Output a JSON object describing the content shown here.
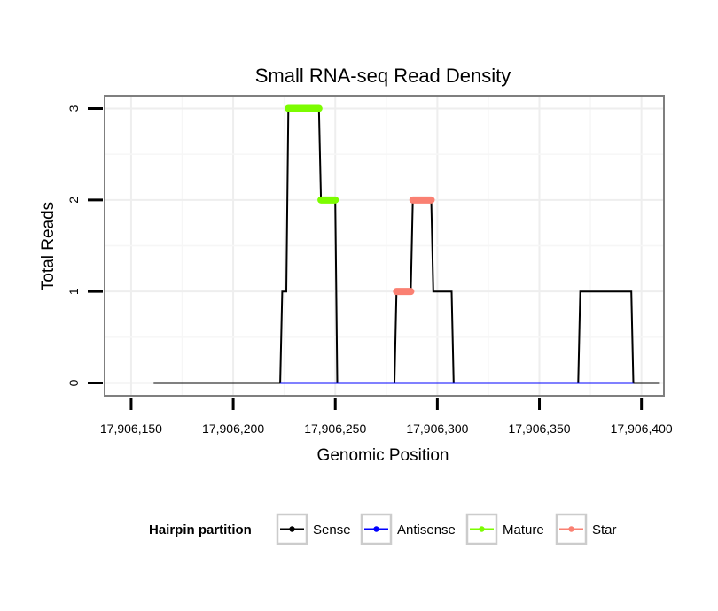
{
  "chart_data": {
    "type": "line",
    "title": "Small RNA-seq Read Density",
    "xlabel": "Genomic Position",
    "ylabel": "Total Reads",
    "xlim": [
      17906137,
      17906411
    ],
    "ylim": [
      -0.14,
      3.14
    ],
    "x_ticks": [
      {
        "value": 17906150,
        "label": "17,906,150"
      },
      {
        "value": 17906200,
        "label": "17,906,200"
      },
      {
        "value": 17906250,
        "label": "17,906,250"
      },
      {
        "value": 17906300,
        "label": "17,906,300"
      },
      {
        "value": 17906350,
        "label": "17,906,350"
      },
      {
        "value": 17906400,
        "label": "17,906,400"
      }
    ],
    "y_ticks": [
      {
        "value": 0,
        "label": "0"
      },
      {
        "value": 1,
        "label": "1"
      },
      {
        "value": 2,
        "label": "2"
      },
      {
        "value": 3,
        "label": "3"
      }
    ],
    "legend_title": "Hairpin partition",
    "legend_position": "bottom",
    "series": [
      {
        "name": "Sense",
        "color": "#000000",
        "style": "line",
        "points": [
          [
            17906161,
            0
          ],
          [
            17906223,
            0
          ],
          [
            17906224,
            1
          ],
          [
            17906226,
            1
          ],
          [
            17906227,
            3
          ],
          [
            17906242,
            3
          ],
          [
            17906243,
            2
          ],
          [
            17906250,
            2
          ],
          [
            17906251,
            0
          ],
          [
            17906279,
            0
          ],
          [
            17906280,
            1
          ],
          [
            17906287,
            1
          ],
          [
            17906288,
            2
          ],
          [
            17906297,
            2
          ],
          [
            17906298,
            1
          ],
          [
            17906307,
            1
          ],
          [
            17906308,
            0
          ],
          [
            17906369,
            0
          ],
          [
            17906370,
            1
          ],
          [
            17906395,
            1
          ],
          [
            17906396,
            0
          ],
          [
            17906409,
            0
          ]
        ]
      },
      {
        "name": "Antisense",
        "color": "#0000ff",
        "style": "line",
        "points": [
          [
            17906223,
            0
          ],
          [
            17906251,
            0
          ],
          [
            17906280,
            0
          ],
          [
            17906308,
            0
          ],
          [
            17906370,
            0
          ],
          [
            17906396,
            0
          ]
        ]
      },
      {
        "name": "Mature",
        "color": "#7cfc00",
        "style": "thick",
        "segments": [
          {
            "x": [
              17906227,
              17906242
            ],
            "y": 3
          },
          {
            "x": [
              17906243,
              17906250
            ],
            "y": 2
          }
        ]
      },
      {
        "name": "Star",
        "color": "#fa8072",
        "style": "thick",
        "segments": [
          {
            "x": [
              17906280,
              17906287
            ],
            "y": 1
          },
          {
            "x": [
              17906288,
              17906297
            ],
            "y": 2
          }
        ]
      }
    ]
  }
}
